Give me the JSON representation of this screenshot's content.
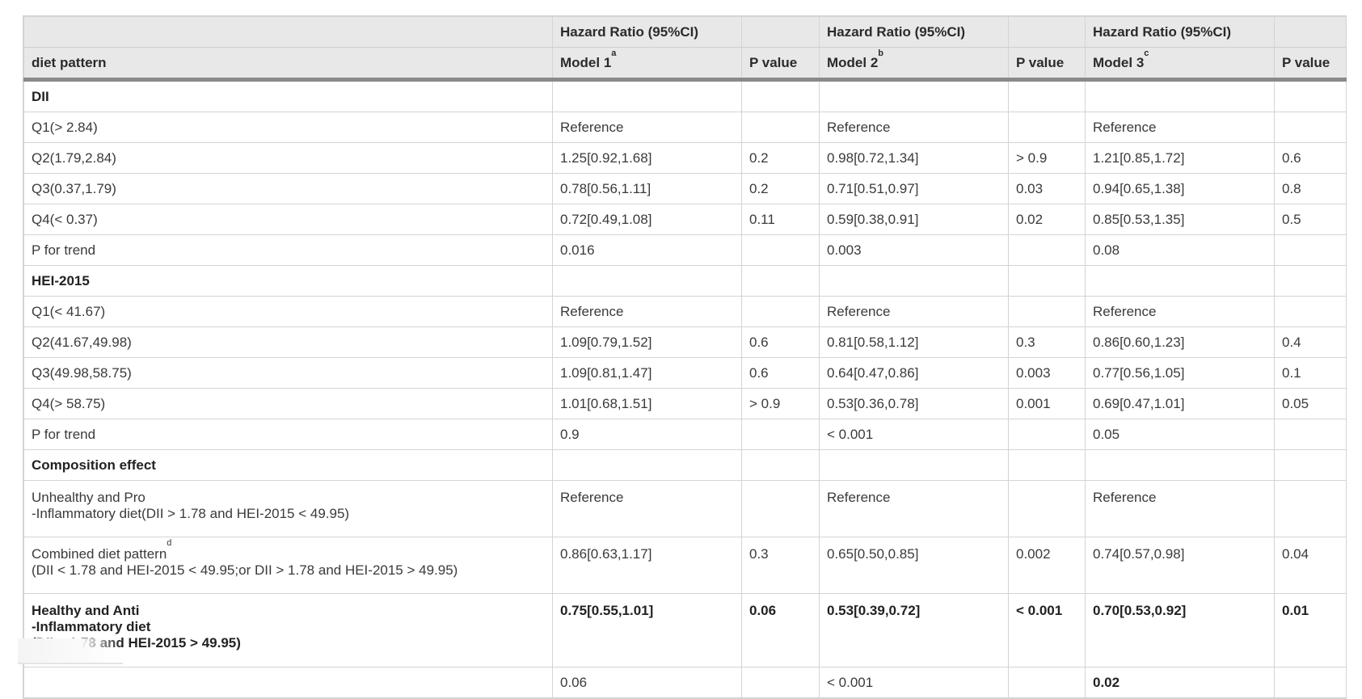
{
  "header": {
    "top": [
      "",
      "Hazard Ratio (95%CI)",
      "",
      "Hazard Ratio (95%CI)",
      "",
      "Hazard Ratio (95%CI)",
      ""
    ],
    "diet_pattern": "diet pattern",
    "model1": "Model 1",
    "model1_sup": "a",
    "model2": "Model 2",
    "model2_sup": "b",
    "model3": "Model 3",
    "model3_sup": "c",
    "pvalue": "P value"
  },
  "rows": [
    {
      "label": "DII",
      "section": true
    },
    {
      "label": "Q1(> 2.84)",
      "m1": "Reference",
      "p1": "",
      "m2": "Reference",
      "p2": "",
      "m3": "Reference",
      "p3": ""
    },
    {
      "label": "Q2(1.79,2.84)",
      "m1": "1.25[0.92,1.68]",
      "p1": "0.2",
      "m2": "0.98[0.72,1.34]",
      "p2": "> 0.9",
      "m3": "1.21[0.85,1.72]",
      "p3": "0.6"
    },
    {
      "label": "Q3(0.37,1.79)",
      "m1": "0.78[0.56,1.11]",
      "p1": "0.2",
      "m2": "0.71[0.51,0.97]",
      "p2": "0.03",
      "m3": "0.94[0.65,1.38]",
      "p3": "0.8"
    },
    {
      "label": "Q4(< 0.37)",
      "m1": "0.72[0.49,1.08]",
      "p1": "0.11",
      "m2": "0.59[0.38,0.91]",
      "p2": "0.02",
      "m3": "0.85[0.53,1.35]",
      "p3": "0.5"
    },
    {
      "label": "P for trend",
      "m1": "0.016",
      "p1": "",
      "m2": "0.003",
      "p2": "",
      "m3": "0.08",
      "p3": ""
    },
    {
      "label": "HEI-2015",
      "section": true
    },
    {
      "label": "Q1(< 41.67)",
      "m1": "Reference",
      "p1": "",
      "m2": "Reference",
      "p2": "",
      "m3": "Reference",
      "p3": ""
    },
    {
      "label": "Q2(41.67,49.98)",
      "m1": "1.09[0.79,1.52]",
      "p1": "0.6",
      "m2": "0.81[0.58,1.12]",
      "p2": "0.3",
      "m3": "0.86[0.60,1.23]",
      "p3": "0.4"
    },
    {
      "label": "Q3(49.98,58.75)",
      "m1": "1.09[0.81,1.47]",
      "p1": "0.6",
      "m2": "0.64[0.47,0.86]",
      "p2": "0.003",
      "m3": "0.77[0.56,1.05]",
      "p3": "0.1"
    },
    {
      "label": "Q4(> 58.75)",
      "m1": "1.01[0.68,1.51]",
      "p1": "> 0.9",
      "m2": "0.53[0.36,0.78]",
      "p2": "0.001",
      "m3": "0.69[0.47,1.01]",
      "p3": "0.05"
    },
    {
      "label": "P for trend",
      "m1": "0.9",
      "p1": "",
      "m2": "< 0.001",
      "p2": "",
      "m3": "0.05",
      "p3": ""
    },
    {
      "label": "Composition effect",
      "section": true
    },
    {
      "label_lines": [
        "Unhealthy and Pro",
        "-Inflammatory diet(DII > 1.78 and HEI-2015 < 49.95)"
      ],
      "m1": "Reference",
      "p1": "",
      "m2": "Reference",
      "p2": "",
      "m3": "Reference",
      "p3": ""
    },
    {
      "label_lines": [
        "Combined diet pattern",
        "(DII < 1.78 and HEI-2015 < 49.95;or DII > 1.78 and HEI-2015 > 49.95)"
      ],
      "label_sup": "d",
      "m1": "0.86[0.63,1.17]",
      "p1": "0.3",
      "m2": "0.65[0.50,0.85]",
      "p2": "0.002",
      "m3": "0.74[0.57,0.98]",
      "p3": "0.04"
    },
    {
      "label_lines": [
        "Healthy and Anti",
        "-Inflammatory diet",
        "(DII < 1.78 and HEI-2015 > 49.95)"
      ],
      "bold": true,
      "m1": "0.75[0.55,1.01]",
      "p1": "0.06",
      "m2": "0.53[0.39,0.72]",
      "p2": "< 0.001",
      "m3": "0.70[0.53,0.92]",
      "p3": "0.01"
    },
    {
      "label": "",
      "m1": "0.06",
      "p1": "",
      "m2": "< 0.001",
      "p2": "",
      "m3": "0.02",
      "p3": "",
      "m3_bold": true
    }
  ]
}
